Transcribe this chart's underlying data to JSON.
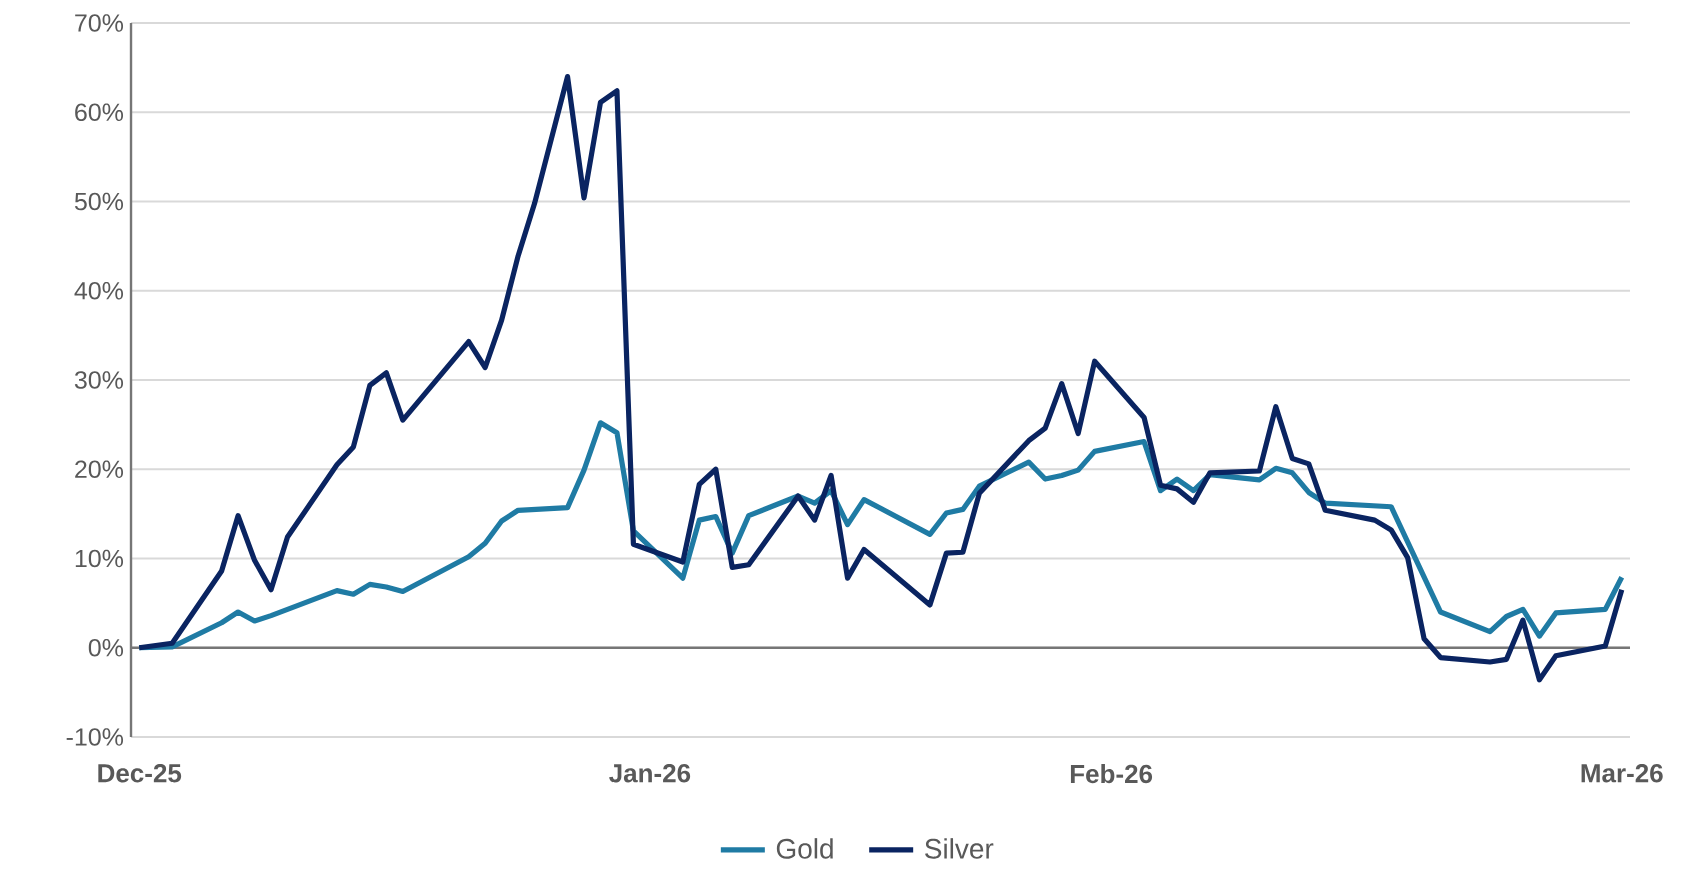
{
  "chart_data": {
    "type": "line",
    "categories": [
      "Dec-25",
      null,
      null,
      null,
      null,
      null,
      null,
      null,
      null,
      null,
      null,
      null,
      null,
      null,
      null,
      null,
      null,
      null,
      null,
      null,
      null,
      null,
      null,
      null,
      null,
      null,
      null,
      null,
      null,
      null,
      null,
      "Jan-26",
      null,
      null,
      null,
      null,
      null,
      null,
      null,
      null,
      null,
      null,
      null,
      null,
      null,
      null,
      null,
      null,
      null,
      null,
      null,
      null,
      null,
      null,
      null,
      null,
      null,
      null,
      null,
      "Feb-26",
      null,
      null,
      null,
      null,
      null,
      null,
      null,
      null,
      null,
      null,
      null,
      null,
      null,
      null,
      null,
      null,
      null,
      null,
      null,
      null,
      null,
      null,
      null,
      null,
      null,
      null,
      null,
      null,
      null,
      null,
      "Mar-26"
    ],
    "ylim": [
      -10,
      70
    ],
    "yticks": [
      {
        "value": -10,
        "label": "-10%"
      },
      {
        "value": 0,
        "label": "0%"
      },
      {
        "value": 10,
        "label": "10%"
      },
      {
        "value": 20,
        "label": "20%"
      },
      {
        "value": 30,
        "label": "30%"
      },
      {
        "value": 40,
        "label": "40%"
      },
      {
        "value": 50,
        "label": "50%"
      },
      {
        "value": 60,
        "label": "60%"
      },
      {
        "value": 70,
        "label": "70%"
      }
    ],
    "grid": "y",
    "legend": "bottom",
    "series": [
      {
        "name": "Gold",
        "color": "#1f7ba4",
        "values": [
          0,
          null,
          0.1,
          null,
          null,
          2.8,
          4.0,
          3.0,
          3.6,
          null,
          null,
          null,
          6.4,
          6.0,
          7.1,
          6.8,
          6.3,
          null,
          null,
          null,
          10.2,
          11.7,
          14.2,
          15.4,
          null,
          null,
          15.7,
          19.9,
          25.2,
          24.1,
          13.1,
          null,
          null,
          7.8,
          14.3,
          14.7,
          10.6,
          14.8,
          null,
          null,
          17.0,
          16.2,
          17.6,
          13.8,
          16.6,
          null,
          null,
          null,
          12.7,
          15.1,
          15.5,
          18.1,
          null,
          null,
          20.8,
          18.9,
          19.3,
          19.9,
          22.0,
          null,
          null,
          23.1,
          17.6,
          18.9,
          17.6,
          19.4,
          null,
          null,
          18.8,
          20.1,
          19.6,
          17.4,
          16.2,
          null,
          null,
          null,
          15.8,
          null,
          null,
          4.0,
          null,
          null,
          1.8,
          3.5,
          4.3,
          1.3,
          3.9,
          null,
          null,
          4.3,
          7.9
        ]
      },
      {
        "name": "Silver",
        "color": "#0a2461",
        "values": [
          0,
          null,
          0.5,
          null,
          null,
          8.6,
          14.8,
          9.8,
          6.5,
          12.4,
          null,
          null,
          20.5,
          22.5,
          29.4,
          30.8,
          25.5,
          null,
          null,
          null,
          34.3,
          31.4,
          36.7,
          43.9,
          49.8,
          null,
          64.0,
          50.4,
          61.1,
          62.4,
          11.6,
          null,
          null,
          9.6,
          18.3,
          20.0,
          9.0,
          9.3,
          null,
          null,
          17.0,
          14.3,
          19.3,
          7.8,
          11.0,
          null,
          null,
          null,
          4.8,
          10.6,
          10.7,
          17.3,
          null,
          null,
          23.2,
          24.6,
          29.6,
          24.0,
          32.1,
          null,
          null,
          25.8,
          18.2,
          17.8,
          16.3,
          19.6,
          null,
          null,
          19.8,
          27.0,
          21.2,
          20.6,
          15.4,
          null,
          null,
          14.3,
          13.2,
          10.1,
          1.0,
          -1.1,
          null,
          null,
          -1.6,
          -1.3,
          3.1,
          -3.6,
          -0.9,
          null,
          null,
          0.2,
          6.5
        ]
      }
    ]
  }
}
